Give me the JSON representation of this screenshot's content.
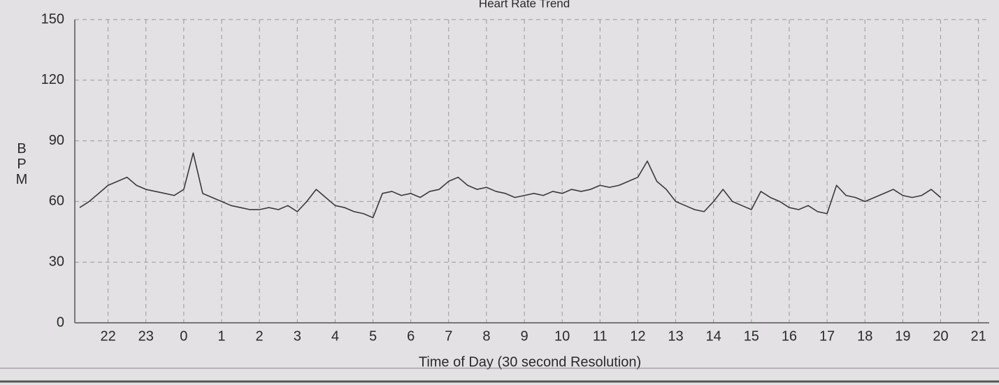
{
  "chart_data": {
    "type": "line",
    "title": "Heart Rate Trend",
    "xlabel": "Time of Day (30 second Resolution)",
    "ylabel": "BPM",
    "categories": [
      null,
      null,
      null,
      "22",
      null,
      null,
      null,
      "23",
      null,
      null,
      null,
      "0",
      null,
      null,
      null,
      "1",
      null,
      null,
      null,
      "2",
      null,
      null,
      null,
      "3",
      null,
      null,
      null,
      "4",
      null,
      null,
      null,
      "5",
      null,
      null,
      null,
      "6",
      null,
      null,
      null,
      "7",
      null,
      null,
      null,
      "8",
      null,
      null,
      null,
      "9",
      null,
      null,
      null,
      "10",
      null,
      null,
      null,
      "11",
      null,
      null,
      null,
      "12",
      null,
      null,
      null,
      "13",
      null,
      null,
      null,
      "14",
      null,
      null,
      null,
      "15",
      null,
      null,
      null,
      "16",
      null,
      null,
      null,
      "17",
      null,
      null,
      null,
      "18",
      null,
      null,
      null,
      "19",
      null,
      null,
      null,
      "20",
      null,
      null,
      null,
      "21"
    ],
    "values": [
      57,
      60,
      64,
      68,
      70,
      72,
      68,
      66,
      65,
      64,
      63,
      66,
      84,
      64,
      62,
      60,
      58,
      57,
      56,
      56,
      57,
      56,
      58,
      55,
      60,
      66,
      62,
      58,
      57,
      55,
      54,
      52,
      64,
      65,
      63,
      64,
      62,
      65,
      66,
      70,
      72,
      68,
      66,
      67,
      65,
      64,
      62,
      63,
      64,
      63,
      65,
      64,
      66,
      65,
      66,
      68,
      67,
      68,
      70,
      72,
      80,
      70,
      66,
      60,
      58,
      56,
      55,
      60,
      66,
      60,
      58,
      56,
      65,
      62,
      60,
      57,
      56,
      58,
      55,
      54,
      68,
      63,
      62,
      60,
      62,
      64,
      66,
      63,
      62,
      63,
      66,
      62,
      null,
      null,
      null,
      null
    ],
    "color": "#3a3a3a",
    "ylim": [
      0,
      150
    ],
    "yticks": [
      0,
      30,
      60,
      90,
      120,
      150
    ],
    "grid": true
  }
}
